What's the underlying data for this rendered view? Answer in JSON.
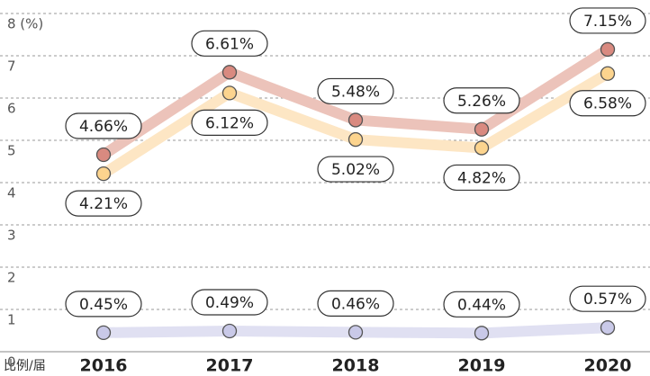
{
  "chart_data": {
    "type": "line",
    "x_label": "比例/届",
    "categories": [
      "2016",
      "2017",
      "2018",
      "2019",
      "2020"
    ],
    "series": [
      {
        "color": "#d98a80",
        "line_color": "#ecc3ba",
        "values": [
          4.66,
          6.61,
          5.48,
          5.26,
          7.15
        ],
        "value_labels": [
          "4.66%",
          "6.61%",
          "5.48%",
          "5.26%",
          "7.15%"
        ]
      },
      {
        "color": "#fcd48e",
        "line_color": "#fde6c4",
        "values": [
          4.21,
          6.12,
          5.02,
          4.82,
          6.58
        ],
        "value_labels": [
          "4.21%",
          "6.12%",
          "5.02%",
          "4.82%",
          "6.58%"
        ]
      },
      {
        "color": "#c9c9e8",
        "line_color": "#e0e0f2",
        "values": [
          0.45,
          0.49,
          0.46,
          0.44,
          0.57
        ],
        "value_labels": [
          "0.45%",
          "0.49%",
          "0.46%",
          "0.44%",
          "0.57%"
        ]
      }
    ],
    "ylim": [
      0,
      8
    ],
    "yticks": [
      0,
      1,
      2,
      3,
      4,
      5,
      6,
      7,
      {
        "value": 8,
        "label": "8 (%)"
      }
    ],
    "grid": true
  }
}
